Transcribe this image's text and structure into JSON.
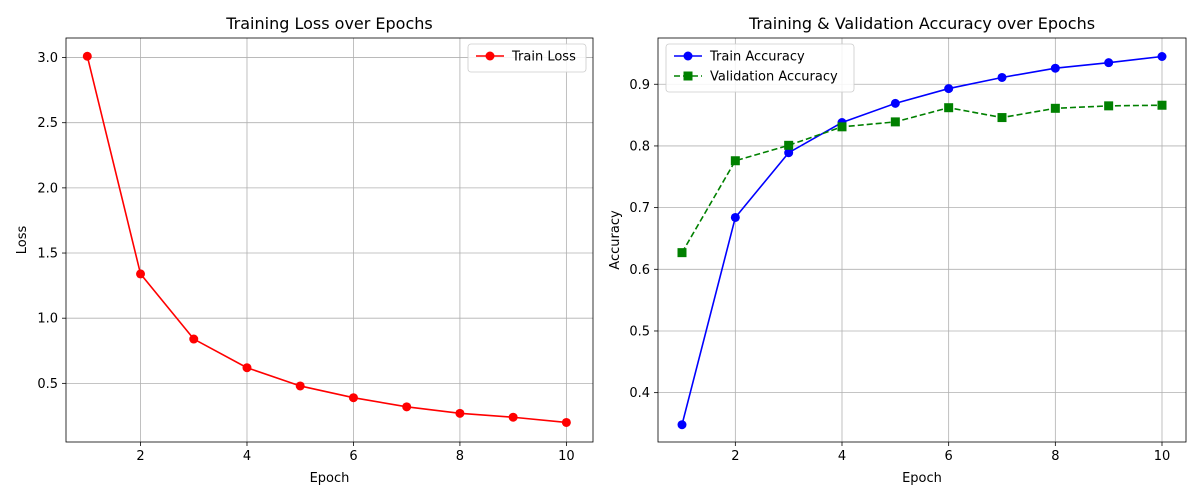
{
  "chart_data": [
    {
      "type": "line",
      "title": "Training Loss over Epochs",
      "xlabel": "Epoch",
      "ylabel": "Loss",
      "x": [
        1,
        2,
        3,
        4,
        5,
        6,
        7,
        8,
        9,
        10
      ],
      "xlim": [
        0.6,
        10.5
      ],
      "ylim": [
        0.05,
        3.15
      ],
      "xticks": [
        2,
        4,
        6,
        8,
        10
      ],
      "yticks": [
        0.5,
        1.0,
        1.5,
        2.0,
        2.5,
        3.0
      ],
      "grid": true,
      "legend_position": "upper-right",
      "series": [
        {
          "name": "Train Loss",
          "values": [
            3.01,
            1.34,
            0.84,
            0.62,
            0.48,
            0.39,
            0.32,
            0.27,
            0.24,
            0.2
          ],
          "color": "#ff0000",
          "line_style": "solid",
          "marker": "circle"
        }
      ]
    },
    {
      "type": "line",
      "title": "Training & Validation Accuracy over Epochs",
      "xlabel": "Epoch",
      "ylabel": "Accuracy",
      "x": [
        1,
        2,
        3,
        4,
        5,
        6,
        7,
        8,
        9,
        10
      ],
      "xlim": [
        0.55,
        10.45
      ],
      "ylim": [
        0.32,
        0.975
      ],
      "xticks": [
        2,
        4,
        6,
        8,
        10
      ],
      "yticks": [
        0.4,
        0.5,
        0.6,
        0.7,
        0.8,
        0.9
      ],
      "grid": true,
      "legend_position": "upper-left",
      "series": [
        {
          "name": "Train Accuracy",
          "values": [
            0.348,
            0.684,
            0.789,
            0.838,
            0.869,
            0.893,
            0.911,
            0.926,
            0.935,
            0.945
          ],
          "color": "#0000ff",
          "line_style": "solid",
          "marker": "circle"
        },
        {
          "name": "Validation Accuracy",
          "values": [
            0.627,
            0.776,
            0.801,
            0.831,
            0.839,
            0.862,
            0.846,
            0.861,
            0.865,
            0.866
          ],
          "color": "#008000",
          "line_style": "dashed",
          "marker": "square"
        }
      ]
    }
  ]
}
